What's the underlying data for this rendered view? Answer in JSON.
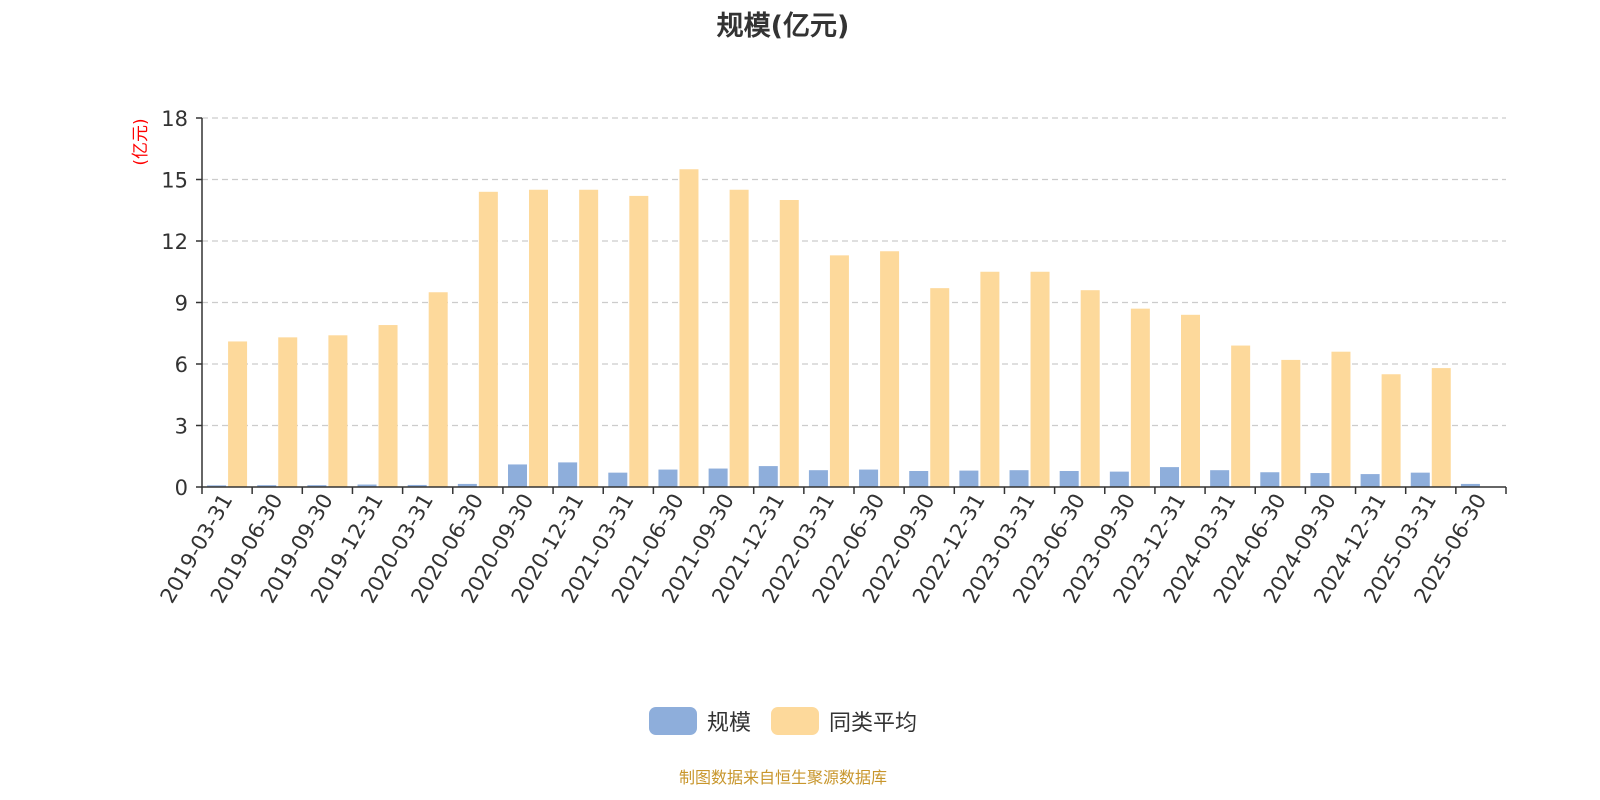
{
  "colors": {
    "scale": "#8eaedb",
    "peer_avg": "#fdd99b",
    "axis": "#333333",
    "grid": "#cccccc",
    "unit_label": "#ff0000",
    "source_note": "#c8962c"
  },
  "legend": {
    "scale_label": "规模",
    "peer_avg_label": "同类平均"
  },
  "source_note": "制图数据来自恒生聚源数据库",
  "chart_data": {
    "type": "bar",
    "title": "规模(亿元)",
    "ylabel": "(亿元)",
    "xlabel": "",
    "ylim": [
      0,
      18
    ],
    "yticks": [
      0,
      3,
      6,
      9,
      12,
      15,
      18
    ],
    "grid": true,
    "legend_position": "bottom",
    "categories": [
      "2019-03-31",
      "2019-06-30",
      "2019-09-30",
      "2019-12-31",
      "2020-03-31",
      "2020-06-30",
      "2020-09-30",
      "2020-12-31",
      "2021-03-31",
      "2021-06-30",
      "2021-09-30",
      "2021-12-31",
      "2022-03-31",
      "2022-06-30",
      "2022-09-30",
      "2022-12-31",
      "2023-03-31",
      "2023-06-30",
      "2023-09-30",
      "2023-12-31",
      "2024-03-31",
      "2024-06-30",
      "2024-09-30",
      "2024-12-31",
      "2025-03-31",
      "2025-06-30"
    ],
    "series": [
      {
        "name": "规模",
        "values": [
          0.08,
          0.09,
          0.09,
          0.12,
          0.1,
          0.15,
          1.1,
          1.2,
          0.7,
          0.85,
          0.9,
          1.02,
          0.82,
          0.85,
          0.78,
          0.8,
          0.82,
          0.78,
          0.75,
          0.97,
          0.82,
          0.72,
          0.68,
          0.63,
          0.7,
          0.15
        ]
      },
      {
        "name": "同类平均",
        "values": [
          7.1,
          7.3,
          7.4,
          7.9,
          9.5,
          14.4,
          14.5,
          14.5,
          14.2,
          15.5,
          14.5,
          14.0,
          11.3,
          11.5,
          9.7,
          10.5,
          10.5,
          9.6,
          8.7,
          8.4,
          6.9,
          6.2,
          6.6,
          5.5,
          5.8,
          null
        ]
      }
    ]
  }
}
